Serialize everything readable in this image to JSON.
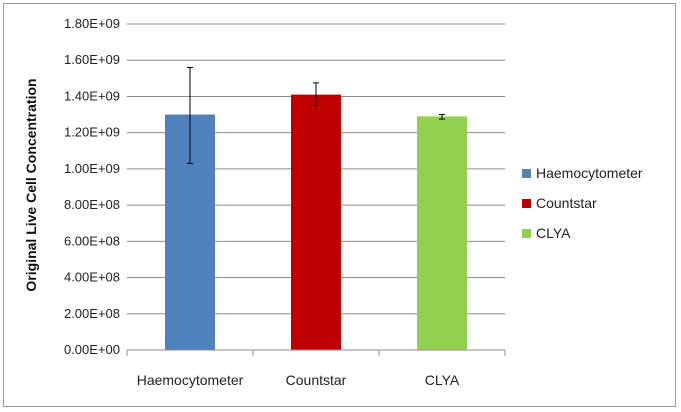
{
  "chart_data": {
    "type": "bar",
    "title": "",
    "xlabel": "",
    "ylabel": "Original Live Cell Concentration",
    "categories": [
      "Haemocytometer",
      "Countstar",
      "CLYA"
    ],
    "values": [
      1300000000.0,
      1410000000.0,
      1290000000.0
    ],
    "error_low": [
      1030000000.0,
      1350000000.0,
      1275000000.0
    ],
    "error_high": [
      1560000000.0,
      1475000000.0,
      1300000000.0
    ],
    "colors": [
      "#4f81bd",
      "#c00000",
      "#92d050"
    ],
    "ylim": [
      0,
      1800000000.0
    ],
    "yticks": [
      0,
      200000000.0,
      400000000.0,
      600000000.0,
      800000000.0,
      1000000000.0,
      1200000000.0,
      1400000000.0,
      1600000000.0,
      1800000000.0
    ],
    "ytick_labels": [
      "0.00E+00",
      "2.00E+08",
      "4.00E+08",
      "6.00E+08",
      "8.00E+08",
      "1.00E+09",
      "1.20E+09",
      "1.40E+09",
      "1.60E+09",
      "1.80E+09"
    ],
    "grid": true,
    "legend": {
      "position": "right",
      "entries": [
        {
          "label": "Haemocytometer",
          "color": "#4f81bd"
        },
        {
          "label": "Countstar",
          "color": "#c00000"
        },
        {
          "label": "CLYA",
          "color": "#92d050"
        }
      ]
    }
  }
}
